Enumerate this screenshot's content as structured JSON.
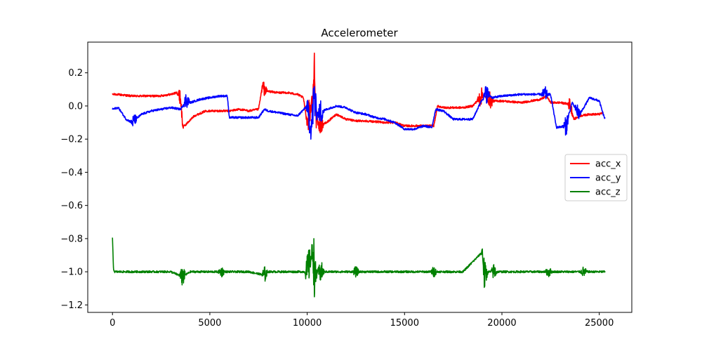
{
  "chart_data": {
    "type": "line",
    "title": "Accelerometer",
    "xlabel": "",
    "ylabel": "",
    "xlim": [
      -1270,
      26670
    ],
    "ylim": [
      -1.245,
      0.385
    ],
    "xticks": [
      0,
      5000,
      10000,
      15000,
      20000,
      25000
    ],
    "xtick_labels": [
      "0",
      "5000",
      "10000",
      "15000",
      "20000",
      "25000"
    ],
    "yticks": [
      -1.2,
      -1.0,
      -0.8,
      -0.6,
      -0.4,
      -0.2,
      0.0,
      0.2
    ],
    "ytick_labels": [
      "−1.2",
      "−1.0",
      "−0.8",
      "−0.6",
      "−0.4",
      "−0.2",
      "0.0",
      "0.2"
    ],
    "grid": false,
    "legend_position": "center-right",
    "noisy_signal": true,
    "series": [
      {
        "name": "acc_x",
        "color": "#ff0000",
        "x": [
          0,
          200,
          1000,
          2000,
          2400,
          3000,
          3300,
          3500,
          3600,
          3700,
          4200,
          4800,
          5500,
          6000,
          6500,
          7000,
          7500,
          7700,
          7900,
          8500,
          9000,
          9500,
          9800,
          10000,
          10100,
          10200,
          10300,
          10380,
          10450,
          10600,
          11000,
          11500,
          12000,
          12500,
          13000,
          14000,
          14500,
          15000,
          15500,
          16000,
          16500,
          16700,
          17000,
          18000,
          18500,
          18800,
          19000,
          19200,
          19500,
          20000,
          21000,
          22000,
          22300,
          22500,
          23000,
          23500,
          23700,
          24000,
          24500,
          25000,
          25200
        ],
        "y": [
          0.07,
          0.07,
          0.06,
          0.06,
          0.06,
          0.07,
          0.08,
          0.05,
          -0.12,
          -0.12,
          -0.06,
          -0.03,
          -0.03,
          -0.03,
          -0.02,
          -0.03,
          -0.02,
          0.12,
          0.09,
          0.08,
          0.08,
          0.07,
          0.05,
          -0.1,
          -0.05,
          0.0,
          0.05,
          0.29,
          -0.07,
          -0.12,
          -0.1,
          -0.05,
          -0.08,
          -0.09,
          -0.09,
          -0.1,
          -0.1,
          -0.12,
          -0.12,
          -0.12,
          -0.12,
          0.0,
          -0.01,
          -0.01,
          0.0,
          0.04,
          0.07,
          0.05,
          0.03,
          0.03,
          0.02,
          0.04,
          0.06,
          0.02,
          0.02,
          0.01,
          -0.08,
          -0.06,
          -0.05,
          -0.05,
          -0.04
        ]
      },
      {
        "name": "acc_y",
        "color": "#0000ff",
        "x": [
          0,
          300,
          700,
          1000,
          1500,
          2000,
          2500,
          3000,
          3500,
          3800,
          4000,
          4500,
          5000,
          5500,
          5900,
          6000,
          6500,
          7000,
          7500,
          7800,
          8000,
          8500,
          9000,
          9500,
          10000,
          10200,
          10350,
          10500,
          11000,
          11500,
          12000,
          12300,
          12500,
          13000,
          13500,
          14000,
          14500,
          15000,
          15500,
          16000,
          16400,
          16600,
          17000,
          17500,
          18000,
          18500,
          18900,
          19200,
          19500,
          20000,
          21000,
          21500,
          22000,
          22300,
          22500,
          22800,
          23300,
          23600,
          23800,
          24000,
          24500,
          25000,
          25200,
          25300
        ],
        "y": [
          -0.02,
          -0.01,
          -0.08,
          -0.1,
          -0.05,
          -0.03,
          -0.02,
          -0.01,
          -0.02,
          0.04,
          0.02,
          0.04,
          0.05,
          0.06,
          0.06,
          -0.07,
          -0.07,
          -0.07,
          -0.07,
          -0.02,
          -0.03,
          -0.04,
          -0.05,
          -0.06,
          0.0,
          -0.15,
          0.05,
          -0.05,
          -0.02,
          0.0,
          -0.01,
          -0.03,
          -0.04,
          -0.05,
          -0.07,
          -0.08,
          -0.1,
          -0.14,
          -0.14,
          -0.12,
          -0.13,
          -0.02,
          -0.03,
          -0.08,
          -0.08,
          -0.08,
          0.02,
          0.08,
          0.05,
          0.06,
          0.07,
          0.07,
          0.07,
          0.07,
          0.07,
          -0.13,
          -0.12,
          0.02,
          -0.02,
          -0.05,
          0.05,
          0.03,
          -0.05,
          -0.08
        ]
      },
      {
        "name": "acc_z",
        "color": "#008000",
        "x": [
          0,
          50,
          100,
          300,
          1000,
          2000,
          3000,
          3600,
          4000,
          5000,
          6000,
          7000,
          7800,
          8000,
          9000,
          10000,
          10300,
          10400,
          10500,
          11000,
          12000,
          13000,
          14000,
          15000,
          16000,
          17000,
          18000,
          19000,
          19100,
          19300,
          20000,
          21000,
          22000,
          23000,
          24000,
          25000,
          25300
        ],
        "y": [
          -0.8,
          -0.98,
          -1.0,
          -1.0,
          -1.0,
          -1.0,
          -1.0,
          -1.03,
          -1.0,
          -1.0,
          -1.0,
          -1.0,
          -1.02,
          -1.0,
          -1.0,
          -1.0,
          -0.87,
          -1.05,
          -1.0,
          -1.0,
          -1.0,
          -1.0,
          -1.0,
          -1.0,
          -1.0,
          -1.0,
          -1.0,
          -0.88,
          -1.03,
          -1.0,
          -1.0,
          -1.0,
          -1.0,
          -1.0,
          -1.0,
          -1.0,
          -1.0
        ]
      }
    ],
    "bursts": [
      {
        "series": "acc_x",
        "center": 3500,
        "amplitude": 0.05
      },
      {
        "series": "acc_x",
        "center": 7800,
        "amplitude": 0.04
      },
      {
        "series": "acc_x",
        "center": 10100,
        "amplitude": 0.09
      },
      {
        "series": "acc_x",
        "center": 10380,
        "amplitude": 0.12
      },
      {
        "series": "acc_x",
        "center": 10700,
        "amplitude": 0.05
      },
      {
        "series": "acc_x",
        "center": 18900,
        "amplitude": 0.06
      },
      {
        "series": "acc_x",
        "center": 19400,
        "amplitude": 0.05
      },
      {
        "series": "acc_x",
        "center": 23500,
        "amplitude": 0.04
      },
      {
        "series": "acc_y",
        "center": 1100,
        "amplitude": 0.04
      },
      {
        "series": "acc_y",
        "center": 3800,
        "amplitude": 0.05
      },
      {
        "series": "acc_y",
        "center": 10100,
        "amplitude": 0.08
      },
      {
        "series": "acc_y",
        "center": 10350,
        "amplitude": 0.16
      },
      {
        "series": "acc_y",
        "center": 10700,
        "amplitude": 0.08
      },
      {
        "series": "acc_y",
        "center": 19200,
        "amplitude": 0.06
      },
      {
        "series": "acc_y",
        "center": 22200,
        "amplitude": 0.05
      },
      {
        "series": "acc_y",
        "center": 23300,
        "amplitude": 0.06
      },
      {
        "series": "acc_y",
        "center": 23900,
        "amplitude": 0.05
      },
      {
        "series": "acc_z",
        "center": 3600,
        "amplitude": 0.06
      },
      {
        "series": "acc_z",
        "center": 5600,
        "amplitude": 0.03
      },
      {
        "series": "acc_z",
        "center": 7800,
        "amplitude": 0.05
      },
      {
        "series": "acc_z",
        "center": 10050,
        "amplitude": 0.13
      },
      {
        "series": "acc_z",
        "center": 10350,
        "amplitude": 0.17
      },
      {
        "series": "acc_z",
        "center": 10700,
        "amplitude": 0.07
      },
      {
        "series": "acc_z",
        "center": 12500,
        "amplitude": 0.03
      },
      {
        "series": "acc_z",
        "center": 16500,
        "amplitude": 0.03
      },
      {
        "series": "acc_z",
        "center": 19100,
        "amplitude": 0.1
      },
      {
        "series": "acc_z",
        "center": 19600,
        "amplitude": 0.05
      },
      {
        "series": "acc_z",
        "center": 22400,
        "amplitude": 0.03
      },
      {
        "series": "acc_z",
        "center": 24200,
        "amplitude": 0.03
      }
    ]
  }
}
